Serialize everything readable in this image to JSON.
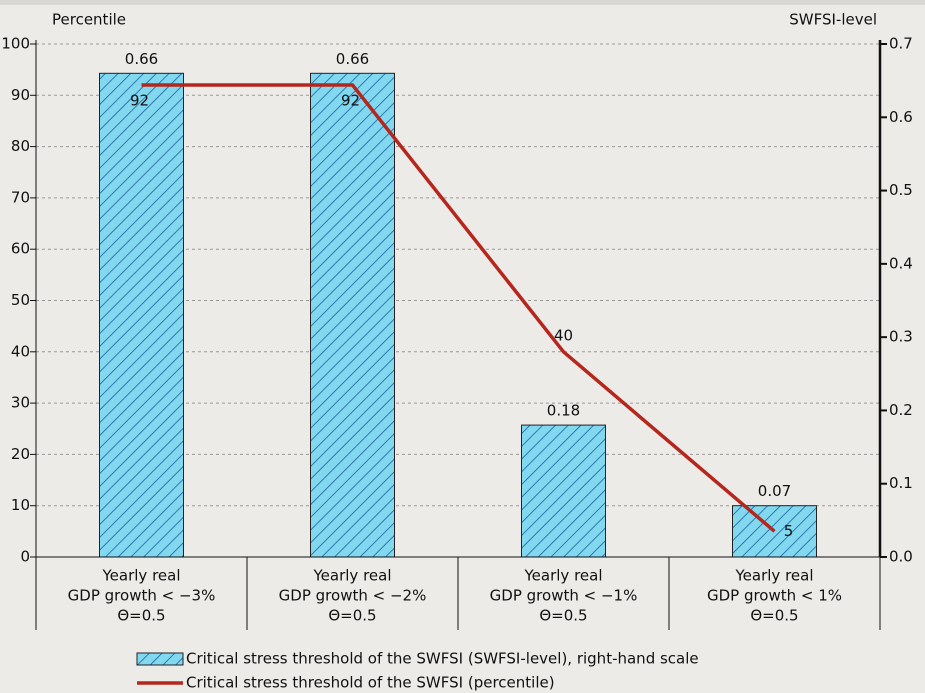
{
  "chart_data": {
    "type": "combo",
    "y_label": "Percentile",
    "y2_label": "SWFSI-level",
    "categories": [
      [
        "Yearly real",
        "GDP growth < −3%",
        "Θ=0.5"
      ],
      [
        "Yearly real",
        "GDP growth < −2%",
        "Θ=0.5"
      ],
      [
        "Yearly real",
        "GDP growth < −1%",
        "Θ=0.5"
      ],
      [
        "Yearly real",
        "GDP growth < 1%",
        "Θ=0.5"
      ]
    ],
    "series": [
      {
        "name": "Critical stress threshold of the SWFSI (SWFSI-level), right-hand scale",
        "type": "bar",
        "axis": "y2",
        "color": "#82d8ef",
        "hatch_color": "#1d5fa0",
        "values": [
          0.66,
          0.66,
          0.18,
          0.07
        ]
      },
      {
        "name": "Critical stress threshold of the SWFSI (percentile)",
        "type": "line",
        "color": "#b5271d",
        "values": [
          92,
          92,
          40,
          5
        ]
      }
    ],
    "ylim": [
      0,
      100
    ],
    "yticks": [
      0,
      10,
      20,
      30,
      40,
      50,
      60,
      70,
      80,
      90,
      100
    ],
    "y2lim": [
      0,
      0.7
    ],
    "y2ticks": [
      {
        "value": 0,
        "label": "0.0"
      },
      0.1,
      0.2,
      0.3,
      0.4,
      0.5,
      0.6,
      0.7
    ],
    "grid": true
  }
}
